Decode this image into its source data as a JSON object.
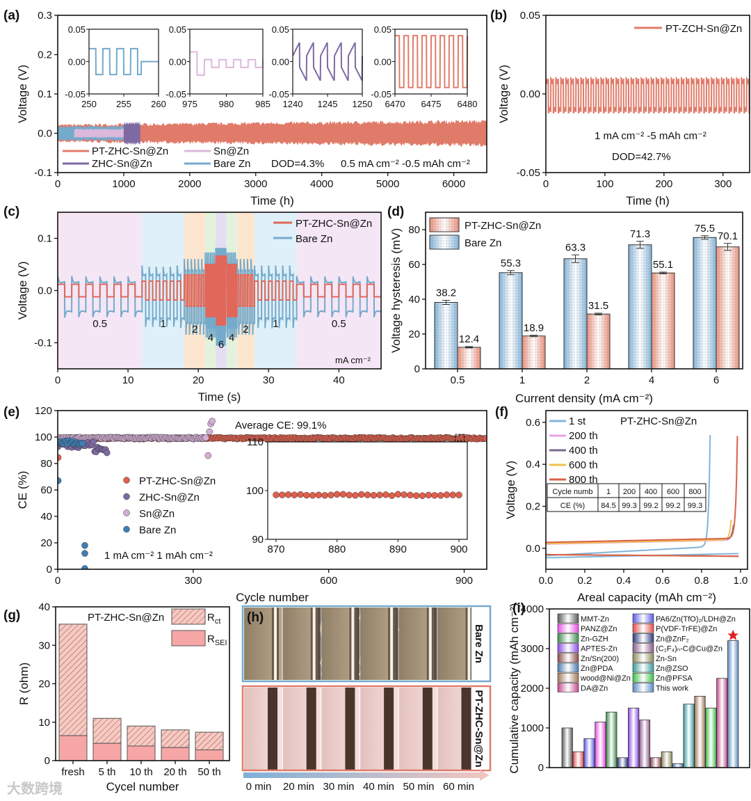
{
  "watermark": "大数跨境",
  "chart_data": [
    {
      "panel": "(a)",
      "type": "line",
      "xlabel": "Time (h)",
      "ylabel": "Voltage (V)",
      "xlim": [
        0,
        6500
      ],
      "ylim": [
        -0.1,
        0.3
      ],
      "xticks": [
        "0",
        "1000",
        "2000",
        "3000",
        "4000",
        "5000",
        "6000"
      ],
      "yticks": [
        "-0.1",
        "0.0",
        "0.1",
        "0.2",
        "0.3"
      ],
      "series": [
        {
          "name": "PT-ZHC-Sn@Zn",
          "color": "#e07b6a",
          "t_range": [
            0,
            6500
          ],
          "amplitude": 0.032
        },
        {
          "name": "Sn@Zn",
          "color": "#dcb8dc",
          "t_range": [
            250,
            1000
          ],
          "amplitude": 0.012
        },
        {
          "name": "ZHC-Sn@Zn",
          "color": "#7d6aa3",
          "t_range": [
            1000,
            1250
          ],
          "amplitude": 0.03
        },
        {
          "name": "Bare Zn",
          "color": "#74aacb",
          "t_range": [
            0,
            1150
          ],
          "amplitude": 0.02
        }
      ],
      "annotations": [
        "DOD=4.3%",
        "0.5 mA cm⁻² -0.5 mAh cm⁻²"
      ],
      "insets": [
        {
          "series": "Bare Zn",
          "color": "#74aacb",
          "xlim": [
            250,
            260
          ],
          "ylim": [
            -0.05,
            0.05
          ],
          "xticks": [
            "250",
            "255",
            "260"
          ],
          "yticks": [
            "0.05",
            "0.00",
            "-0.05"
          ],
          "amplitude": 0.02,
          "period_h": 2
        },
        {
          "series": "Sn@Zn",
          "color": "#dcb8dc",
          "xlim": [
            975,
            985
          ],
          "ylim": [
            -0.05,
            0.05
          ],
          "xticks": [
            "975",
            "980",
            "985"
          ],
          "yticks": [
            "0.05",
            "0.00",
            "-0.05"
          ],
          "amplitude": 0.006,
          "period_h": 2
        },
        {
          "series": "ZHC-Sn@Zn",
          "color": "#7d6aa3",
          "xlim": [
            1240,
            1250
          ],
          "ylim": [
            -0.05,
            0.05
          ],
          "xticks": [
            "1240",
            "1245",
            "1250"
          ],
          "yticks": [
            "0.05",
            "0.00",
            "-0.05"
          ],
          "amplitude": 0.03,
          "period_h": 2
        },
        {
          "series": "PT-ZHC-Sn@Zn",
          "color": "#e07b6a",
          "xlim": [
            6470,
            6480
          ],
          "ylim": [
            -0.05,
            0.05
          ],
          "xticks": [
            "6470",
            "6475",
            "6480"
          ],
          "yticks": [
            "0.05",
            "0.00",
            "-0.05"
          ],
          "amplitude": 0.04,
          "period_h": 1.25
        }
      ]
    },
    {
      "panel": "(b)",
      "type": "line",
      "xlabel": "Time (h)",
      "ylabel": "Voltage (V)",
      "xlim": [
        0,
        345
      ],
      "ylim": [
        -0.05,
        0.05
      ],
      "xticks": [
        "0",
        "100",
        "200",
        "300"
      ],
      "yticks": [
        "-0.05",
        "0.00",
        "0.05"
      ],
      "series": [
        {
          "name": "PT-ZCH-Sn@Zn",
          "color": "#e07b6a",
          "amplitude": 0.011,
          "period_h": 8.5
        }
      ],
      "annotations": [
        "1 mA cm⁻² -5 mAh cm⁻²",
        "DOD=42.7%"
      ]
    },
    {
      "panel": "(c)",
      "type": "line",
      "xlabel": "Time (s)",
      "ylabel": "Voltage (V)",
      "xlim": [
        0,
        46
      ],
      "ylim": [
        -0.15,
        0.15
      ],
      "xticks": [
        "0",
        "10",
        "20",
        "30",
        "40"
      ],
      "yticks": [
        "-0.1",
        "0.0",
        "0.1"
      ],
      "series": [
        {
          "name": "PT-ZHC-Sn@Zn",
          "color": "#e0675a"
        },
        {
          "name": "Bare Zn",
          "color": "#74aacb"
        }
      ],
      "unit": "mA cm⁻²",
      "segments": [
        {
          "t": [
            0,
            12
          ],
          "current": "0.5",
          "bare_amp": 0.032,
          "pt_amp": 0.012,
          "period": 2,
          "bg": "#f5e6f5"
        },
        {
          "t": [
            12,
            18
          ],
          "current": "1",
          "bare_amp": 0.048,
          "pt_amp": 0.018,
          "period": 1,
          "bg": "#dff0f9"
        },
        {
          "t": [
            18,
            21
          ],
          "current": "2",
          "bare_amp": 0.058,
          "pt_amp": 0.03,
          "period": 0.5,
          "bg": "#fce6d0"
        },
        {
          "t": [
            21,
            22.5
          ],
          "current": "4",
          "bare_amp": 0.068,
          "pt_amp": 0.05,
          "period": 0.25,
          "bg": "#e2f2dd"
        },
        {
          "t": [
            22.5,
            24
          ],
          "current": "6",
          "bare_amp": 0.075,
          "pt_amp": 0.066,
          "period": 0.2,
          "bg": "#e5def3"
        },
        {
          "t": [
            24,
            25.5
          ],
          "current": "4",
          "bare_amp": 0.068,
          "pt_amp": 0.05,
          "period": 0.25,
          "bg": "#e2f2dd"
        },
        {
          "t": [
            25.5,
            28
          ],
          "current": "2",
          "bare_amp": 0.058,
          "pt_amp": 0.03,
          "period": 0.5,
          "bg": "#fce6d0"
        },
        {
          "t": [
            28,
            34
          ],
          "current": "1",
          "bare_amp": 0.048,
          "pt_amp": 0.018,
          "period": 1,
          "bg": "#dff0f9"
        },
        {
          "t": [
            34,
            46
          ],
          "current": "0.5",
          "bare_amp": 0.032,
          "pt_amp": 0.012,
          "period": 2,
          "bg": "#f5e6f5"
        }
      ]
    },
    {
      "panel": "(d)",
      "type": "bar",
      "xlabel": "Current density (mA cm⁻²)",
      "ylabel": "Voltage hysteresis (mV)",
      "categories": [
        "0.5",
        "1",
        "2",
        "4",
        "6"
      ],
      "xticks": [
        "0.5",
        "1",
        "2",
        "4",
        "6"
      ],
      "ylim": [
        0,
        90
      ],
      "yticks": [
        "0",
        "20",
        "40",
        "60",
        "80"
      ],
      "series": [
        {
          "name": "PT-ZHC-Sn@Zn",
          "color": "#e9907c",
          "values": [
            12.4,
            18.9,
            31.5,
            55.1,
            70.1
          ],
          "labels": [
            "12.4",
            "18.9",
            "31.5",
            "55.1",
            "70.1"
          ],
          "errors": [
            0.4,
            0.4,
            0.5,
            0.5,
            2.0
          ]
        },
        {
          "name": "Bare Zn",
          "color": "#86b4d8",
          "values": [
            38.2,
            55.3,
            63.3,
            71.3,
            75.5
          ],
          "labels": [
            "38.2",
            "55.3",
            "63.3",
            "71.3",
            "75.5"
          ],
          "errors": [
            1.2,
            1.2,
            2.2,
            2.0,
            1.0
          ]
        }
      ]
    },
    {
      "panel": "(e)",
      "type": "scatter",
      "xlabel": "Cycle number",
      "ylabel": "CE (%)",
      "xlim": [
        0,
        950
      ],
      "ylim": [
        0,
        120
      ],
      "xticks": [
        "0",
        "300",
        "600",
        "900"
      ],
      "yticks": [
        "0",
        "20",
        "40",
        "60",
        "80",
        "100",
        "120"
      ],
      "series": [
        {
          "name": "PT-ZHC-Sn@Zn",
          "color": "#e0604e",
          "cycle_range": [
            1,
            950
          ],
          "ce_mean": 99.1
        },
        {
          "name": "ZHC-Sn@Zn",
          "color": "#7d6aa3",
          "cycle_range": [
            1,
            110
          ],
          "ce_mean": 94.5
        },
        {
          "name": "Sn@Zn",
          "color": "#d4aed4",
          "cycle_range": [
            1,
            345
          ],
          "ce_mean": 99.3,
          "spikes": [
            86,
            104,
            110,
            112
          ]
        },
        {
          "name": "Bare Zn",
          "color": "#3f7fb5",
          "cycle_range": [
            1,
            60
          ],
          "ce_mean": 96,
          "failure_points": [
            18,
            12,
            0.5,
            0.5
          ]
        }
      ],
      "annotations": [
        "Average CE: 99.1%",
        "1 mA cm⁻² 1 mAh cm⁻²"
      ],
      "inset": {
        "xlim": [
          870,
          900
        ],
        "ylim": [
          90,
          110
        ],
        "xticks": [
          "870",
          "880",
          "890",
          "900"
        ],
        "yticks": [
          "90",
          "100",
          "110"
        ],
        "ce": 99.1
      }
    },
    {
      "panel": "(f)",
      "type": "line",
      "title": "PT-ZHC-Sn@Zn",
      "xlabel": "Areal capacity (mAh cm⁻²)",
      "ylabel": "Voltage (V)",
      "xlim": [
        0,
        1.036
      ],
      "ylim": [
        -0.1,
        0.656
      ],
      "xticks": [
        "0.0",
        "0.2",
        "0.4",
        "0.6",
        "0.8",
        "1.0"
      ],
      "yticks": [
        "0.0",
        "0.2",
        "0.4",
        "0.6"
      ],
      "series": [
        {
          "name": "1 st",
          "color": "#82b4da",
          "end_capacity": 0.845,
          "max_voltage": 0.61,
          "plateau": -0.035
        },
        {
          "name": "200 th",
          "color": "#e7a2e7",
          "end_capacity": 0.96,
          "max_voltage": 0.1,
          "plateau": 0.02
        },
        {
          "name": "400 th",
          "color": "#7a6a8c",
          "end_capacity": 0.965,
          "max_voltage": 0.12,
          "plateau": 0.025
        },
        {
          "name": "600 th",
          "color": "#f2c24e",
          "end_capacity": 0.955,
          "max_voltage": 0.18,
          "plateau": 0.022
        },
        {
          "name": "800 th",
          "color": "#d9614a",
          "end_capacity": 0.985,
          "max_voltage": 0.6,
          "plateau": 0.028
        }
      ],
      "table": {
        "headers": [
          "Cycle numb",
          "1",
          "200",
          "400",
          "600",
          "800"
        ],
        "row": [
          "CE (%)",
          "84.5",
          "99.3",
          "99.2",
          "99.2",
          "99.3"
        ]
      }
    },
    {
      "panel": "(g)",
      "type": "bar",
      "title": "PT-ZHC-Sn@Zn",
      "xlabel": "Cycel number",
      "ylabel": "R (ohm)",
      "categories": [
        "fresh",
        "5 th",
        "10 th",
        "20 th",
        "50 th"
      ],
      "xticks": [
        "fresh",
        "5 th",
        "10 th",
        "20 th",
        "50 th"
      ],
      "ylim": [
        0,
        40
      ],
      "yticks": [
        "0",
        "10",
        "20",
        "30",
        "40"
      ],
      "series": [
        {
          "name": "R_SEI",
          "symbol": "R",
          "subscript": "SEI",
          "color": "#f7a6a6",
          "values": [
            6.5,
            4.5,
            3.8,
            3.4,
            2.8
          ]
        },
        {
          "name": "R_ct",
          "symbol": "R",
          "subscript": "ct",
          "color": "#f7c9c0",
          "values": [
            29.0,
            6.5,
            5.2,
            4.6,
            4.6
          ]
        }
      ]
    },
    {
      "panel": "(h)",
      "type": "image-series",
      "rows": [
        {
          "label": "Bare Zn",
          "color": "#74aacb"
        },
        {
          "label": "PT-ZHC-Sn@Zn",
          "color": "#e07b6a"
        }
      ],
      "time_labels": [
        "0  min",
        "20 min",
        "30 min",
        "40 min",
        "50 min",
        "60 min"
      ]
    },
    {
      "panel": "(i)",
      "type": "bar",
      "ylabel": "Cumulative capacity (mAh cm⁻²)",
      "ylim": [
        0,
        4000
      ],
      "yticks": [
        "0",
        "1000",
        "2000",
        "3000",
        "4000"
      ],
      "bars": [
        {
          "value": 1000,
          "color": "#5a5a5a"
        },
        {
          "value": 400,
          "color": "#e64c4c"
        },
        {
          "value": 730,
          "color": "#5a5ae6"
        },
        {
          "value": 1150,
          "color": "#e64ce6"
        },
        {
          "value": 1400,
          "color": "#3c8c4c"
        },
        {
          "value": 250,
          "color": "#2a3a7a"
        },
        {
          "value": 1500,
          "color": "#8a4ce6"
        },
        {
          "value": 1200,
          "color": "#8a5a8a"
        },
        {
          "value": 250,
          "color": "#8c4a4a"
        },
        {
          "value": 400,
          "color": "#8a8a5a"
        },
        {
          "value": 100,
          "color": "#4a7ab0"
        },
        {
          "value": 1600,
          "color": "#3a9a9a"
        },
        {
          "value": 1800,
          "color": "#a0785a"
        },
        {
          "value": 1500,
          "color": "#3ac04a"
        },
        {
          "value": 2250,
          "color": "#c04a8c"
        },
        {
          "value": 3200,
          "color": "#5a8ac0"
        }
      ],
      "legend": [
        {
          "name": "MMT-Zn",
          "color": "#5a5a5a"
        },
        {
          "name": "PANZ@Zn",
          "color": "#e64ce6"
        },
        {
          "name": "Zn-GZH",
          "color": "#3c8c4c"
        },
        {
          "name": "APTES-Zn",
          "color": "#8a4ce6"
        },
        {
          "name": "Zn/Sn(200)",
          "color": "#8c4a4a"
        },
        {
          "name": "Zn@PDA",
          "color": "#4a7ab0"
        },
        {
          "name": "wood@Ni@Zn",
          "color": "#a0785a"
        },
        {
          "name": "DA@Zn",
          "color": "#c04a8c"
        },
        {
          "name": "PA6/Zn(TfO)₂/LDH@Zn",
          "color": "#5a5ae6"
        },
        {
          "name": "P(VDF-TrFE)@Zn",
          "color": "#e64c4c"
        },
        {
          "name": "Zn@ZnF₂",
          "color": "#2a3a7a"
        },
        {
          "name": "(C₂F₄)ₙ-C@Cu@Zn",
          "color": "#8a5a8a"
        },
        {
          "name": "Zn-Sn",
          "color": "#8a8a5a"
        },
        {
          "name": "Zn@ZSO",
          "color": "#3a9a9a"
        },
        {
          "name": "Zn@PFSA",
          "color": "#3ac04a"
        },
        {
          "name": "This work",
          "color": "#5a8ac0",
          "text_color": "#c0392b"
        }
      ]
    }
  ]
}
